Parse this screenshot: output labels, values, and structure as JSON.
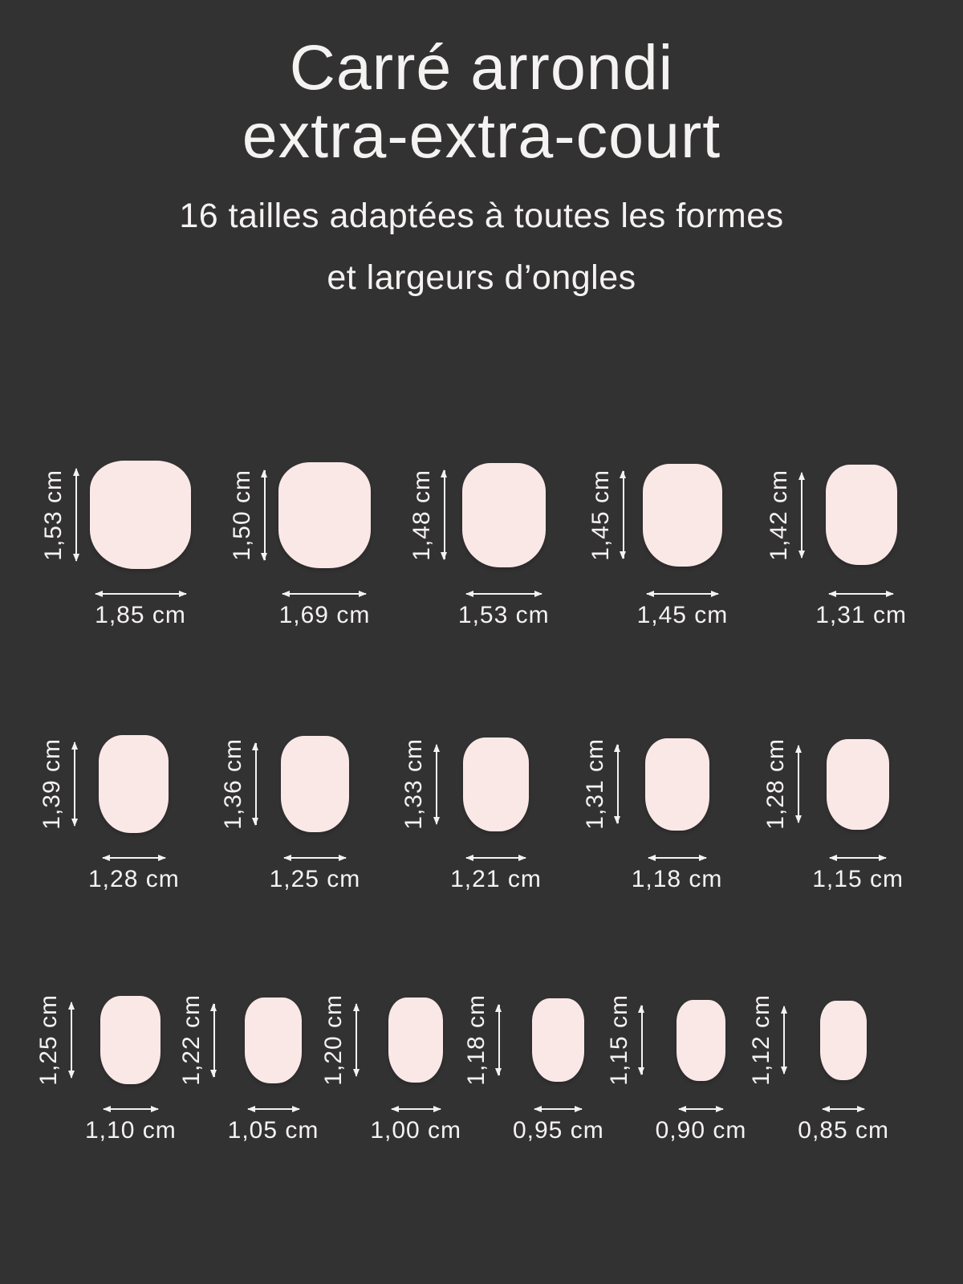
{
  "colors": {
    "background": "#333233",
    "text": "#F5F2F2",
    "nail": "#FAE8E7"
  },
  "header": {
    "title_line1": "Carré arrondi",
    "title_line2": "extra-extra-court",
    "subtitle_line1": "16 tailles adaptées à toutes les formes",
    "subtitle_line2": "et largeurs d’ongles"
  },
  "unit": "cm",
  "rows": [
    {
      "items": [
        {
          "height_label": "1,53 cm",
          "width_label": "1,85 cm",
          "height_cm": 1.53,
          "width_cm": 1.85
        },
        {
          "height_label": "1,50 cm",
          "width_label": "1,69 cm",
          "height_cm": 1.5,
          "width_cm": 1.69
        },
        {
          "height_label": "1,48 cm",
          "width_label": "1,53 cm",
          "height_cm": 1.48,
          "width_cm": 1.53
        },
        {
          "height_label": "1,45 cm",
          "width_label": "1,45 cm",
          "height_cm": 1.45,
          "width_cm": 1.45
        },
        {
          "height_label": "1,42 cm",
          "width_label": "1,31 cm",
          "height_cm": 1.42,
          "width_cm": 1.31
        }
      ]
    },
    {
      "items": [
        {
          "height_label": "1,39 cm",
          "width_label": "1,28 cm",
          "height_cm": 1.39,
          "width_cm": 1.28
        },
        {
          "height_label": "1,36 cm",
          "width_label": "1,25 cm",
          "height_cm": 1.36,
          "width_cm": 1.25
        },
        {
          "height_label": "1,33 cm",
          "width_label": "1,21 cm",
          "height_cm": 1.33,
          "width_cm": 1.21
        },
        {
          "height_label": "1,31 cm",
          "width_label": "1,18 cm",
          "height_cm": 1.31,
          "width_cm": 1.18
        },
        {
          "height_label": "1,28 cm",
          "width_label": "1,15 cm",
          "height_cm": 1.28,
          "width_cm": 1.15
        }
      ]
    },
    {
      "items": [
        {
          "height_label": "1,25 cm",
          "width_label": "1,10 cm",
          "height_cm": 1.25,
          "width_cm": 1.1
        },
        {
          "height_label": "1,22 cm",
          "width_label": "1,05 cm",
          "height_cm": 1.22,
          "width_cm": 1.05
        },
        {
          "height_label": "1,20 cm",
          "width_label": "1,00 cm",
          "height_cm": 1.2,
          "width_cm": 1.0
        },
        {
          "height_label": "1,18 cm",
          "width_label": "0,95 cm",
          "height_cm": 1.18,
          "width_cm": 0.95
        },
        {
          "height_label": "1,15 cm",
          "width_label": "0,90 cm",
          "height_cm": 1.15,
          "width_cm": 0.9
        },
        {
          "height_label": "1,12 cm",
          "width_label": "0,85 cm",
          "height_cm": 1.12,
          "width_cm": 0.85
        }
      ]
    }
  ]
}
